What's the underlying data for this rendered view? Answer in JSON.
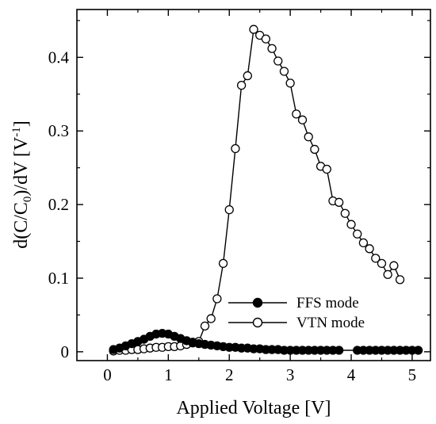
{
  "chart_data": {
    "type": "line",
    "title": "",
    "xlabel": "Applied Voltage [V]",
    "ylabel_parts": {
      "a": "d(C/C",
      "sub": "0",
      "b": ")/dV [V",
      "sup": "-1",
      "c": "]"
    },
    "xlim": [
      -0.5,
      5.3
    ],
    "ylim": [
      -0.012,
      0.465
    ],
    "x_ticks": [
      "0",
      "1",
      "2",
      "3",
      "4",
      "5"
    ],
    "x_tick_values": [
      0,
      1,
      2,
      3,
      4,
      5
    ],
    "y_ticks": [
      "0",
      "0.1",
      "0.2",
      "0.3",
      "0.4"
    ],
    "y_tick_values": [
      0,
      0.1,
      0.2,
      0.3,
      0.4
    ],
    "legend_position": "center-right",
    "series": [
      {
        "name": "FFS mode",
        "marker": "filled-circle",
        "color": "#000000",
        "x": [
          0.1,
          0.2,
          0.3,
          0.4,
          0.5,
          0.6,
          0.7,
          0.8,
          0.9,
          1.0,
          1.1,
          1.2,
          1.3,
          1.4,
          1.5,
          1.6,
          1.7,
          1.8,
          1.9,
          2.0,
          2.1,
          2.2,
          2.3,
          2.4,
          2.5,
          2.6,
          2.7,
          2.8,
          2.9,
          3.0,
          3.1,
          3.2,
          3.3,
          3.4,
          3.5,
          3.6,
          3.7,
          3.8,
          4.1,
          4.2,
          4.3,
          4.4,
          4.5,
          4.6,
          4.7,
          4.8,
          4.9,
          5.0,
          5.1
        ],
        "y": [
          0.003,
          0.005,
          0.008,
          0.011,
          0.014,
          0.017,
          0.021,
          0.024,
          0.025,
          0.024,
          0.021,
          0.018,
          0.015,
          0.013,
          0.011,
          0.01,
          0.009,
          0.008,
          0.007,
          0.006,
          0.006,
          0.005,
          0.005,
          0.004,
          0.004,
          0.003,
          0.003,
          0.003,
          0.002,
          0.002,
          0.002,
          0.002,
          0.002,
          0.002,
          0.002,
          0.002,
          0.002,
          0.002,
          0.002,
          0.002,
          0.002,
          0.002,
          0.002,
          0.002,
          0.002,
          0.002,
          0.002,
          0.002,
          0.002
        ]
      },
      {
        "name": "VTN mode",
        "marker": "open-circle",
        "color": "#000000",
        "x": [
          0.1,
          0.2,
          0.3,
          0.4,
          0.5,
          0.6,
          0.7,
          0.8,
          0.9,
          1.0,
          1.1,
          1.2,
          1.3,
          1.4,
          1.5,
          1.6,
          1.7,
          1.8,
          1.9,
          2.0,
          2.1,
          2.2,
          2.3,
          2.4,
          2.5,
          2.6,
          2.7,
          2.8,
          2.9,
          3.0,
          3.1,
          3.2,
          3.3,
          3.4,
          3.5,
          3.6,
          3.7,
          3.8,
          3.9,
          4.0,
          4.1,
          4.2,
          4.3,
          4.4,
          4.5,
          4.6,
          4.7,
          4.8
        ],
        "y": [
          0.001,
          0.002,
          0.002,
          0.003,
          0.003,
          0.004,
          0.005,
          0.006,
          0.006,
          0.007,
          0.007,
          0.008,
          0.01,
          0.012,
          0.014,
          0.035,
          0.045,
          0.072,
          0.12,
          0.193,
          0.276,
          0.362,
          0.375,
          0.438,
          0.43,
          0.425,
          0.412,
          0.395,
          0.381,
          0.365,
          0.323,
          0.315,
          0.292,
          0.275,
          0.252,
          0.248,
          0.205,
          0.203,
          0.188,
          0.173,
          0.16,
          0.148,
          0.14,
          0.127,
          0.12,
          0.105,
          0.117,
          0.098
        ]
      }
    ]
  }
}
